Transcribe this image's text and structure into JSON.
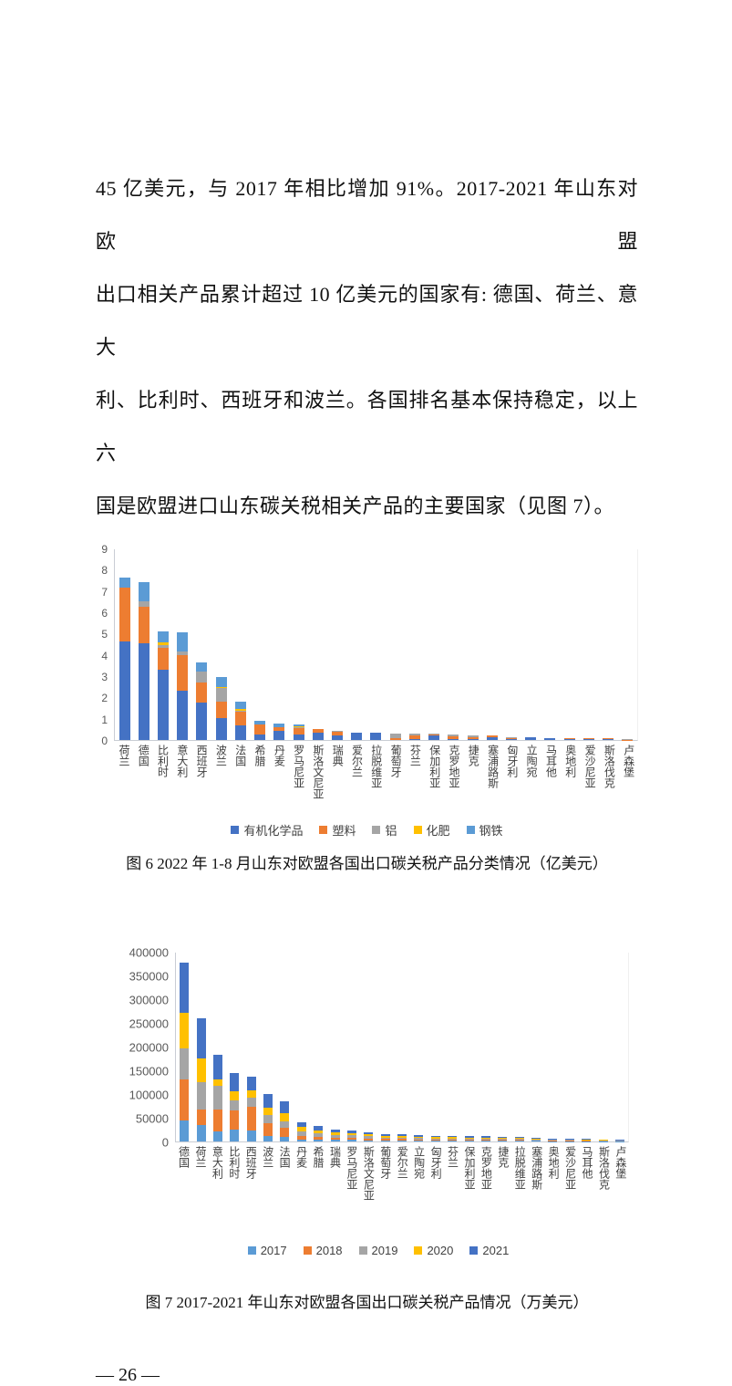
{
  "page": {
    "paragraph_lines": [
      "45 亿美元，与 2017 年相比增加 91%。2017-2021 年山东对欧盟",
      "出口相关产品累计超过 10 亿美元的国家有: 德国、荷兰、意大",
      "利、比利时、西班牙和波兰。各国排名基本保持稳定，以上六",
      "国是欧盟进口山东碳关税相关产品的主要国家（见图 7）。"
    ],
    "figure6_caption": "图 6 2022 年 1-8 月山东对欧盟各国出口碳关税产品分类情况（亿美元）",
    "figure7_caption": "图 7 2017-2021 年山东对欧盟各国出口碳关税产品情况（万美元）",
    "page_number": "— 26 —"
  },
  "colors": {
    "series_dark_blue": "#4472C4",
    "series_orange": "#ED7D31",
    "series_gray": "#A5A5A5",
    "series_yellow": "#FFC000",
    "series_light_blue": "#5B9BD5",
    "axis_line": "#C9CDD4",
    "tick_text": "#595959"
  },
  "chart_data": [
    {
      "type": "bar",
      "stacked": true,
      "title": "",
      "unit": "亿美元",
      "ylim": [
        0,
        9
      ],
      "yticks": [
        0,
        1,
        2,
        3,
        4,
        5,
        6,
        7,
        8,
        9
      ],
      "gridlines": false,
      "legend_position": "bottom",
      "categories": [
        "荷兰",
        "德国",
        "比利时",
        "意大利",
        "西班牙",
        "波兰",
        "法国",
        "希腊",
        "丹麦",
        "罗马尼亚",
        "斯洛文尼亚",
        "瑞典",
        "爱尔兰",
        "拉脱维亚",
        "葡萄牙",
        "芬兰",
        "保加利亚",
        "克罗地亚",
        "捷克",
        "塞浦路斯",
        "匈牙利",
        "立陶宛",
        "马耳他",
        "奥地利",
        "爱沙尼亚",
        "斯洛伐克",
        "卢森堡"
      ],
      "series": [
        {
          "name": "有机化学品",
          "color": "#4472C4",
          "values": [
            4.65,
            4.55,
            3.3,
            2.3,
            1.75,
            1.05,
            0.7,
            0.25,
            0.45,
            0.25,
            0.35,
            0.2,
            0.33,
            0.33,
            0.0,
            0.05,
            0.2,
            0.05,
            0.05,
            0.15,
            0.05,
            0.12,
            0.08,
            0.05,
            0.05,
            0.06,
            0.0
          ]
        },
        {
          "name": "塑料",
          "color": "#ED7D31",
          "values": [
            2.5,
            1.7,
            1.05,
            1.7,
            0.95,
            0.75,
            0.65,
            0.5,
            0.15,
            0.3,
            0.15,
            0.2,
            0.02,
            0.02,
            0.1,
            0.15,
            0.05,
            0.12,
            0.08,
            0.05,
            0.03,
            0.02,
            0.02,
            0.02,
            0.02,
            0.02,
            0.01
          ]
        },
        {
          "name": "铝",
          "color": "#A5A5A5",
          "values": [
            0.0,
            0.25,
            0.1,
            0.15,
            0.5,
            0.65,
            0.02,
            0.0,
            0.02,
            0.03,
            0.0,
            0.05,
            0.0,
            0.0,
            0.18,
            0.1,
            0.05,
            0.08,
            0.1,
            0.0,
            0.06,
            0.0,
            0.0,
            0.03,
            0.03,
            0.0,
            0.04
          ]
        },
        {
          "name": "化肥",
          "color": "#FFC000",
          "values": [
            0.02,
            0.02,
            0.15,
            0.02,
            0.02,
            0.02,
            0.1,
            0.0,
            0.0,
            0.05,
            0.0,
            0.0,
            0.0,
            0.0,
            0.0,
            0.0,
            0.0,
            0.0,
            0.0,
            0.0,
            0.0,
            0.0,
            0.0,
            0.0,
            0.0,
            0.0,
            0.0
          ]
        },
        {
          "name": "钢铁",
          "color": "#5B9BD5",
          "values": [
            0.45,
            0.9,
            0.5,
            0.9,
            0.43,
            0.5,
            0.35,
            0.15,
            0.15,
            0.12,
            0.0,
            0.0,
            0.0,
            0.0,
            0.0,
            0.0,
            0.0,
            0.0,
            0.0,
            0.0,
            0.0,
            0.0,
            0.0,
            0.0,
            0.0,
            0.0,
            0.0
          ]
        }
      ]
    },
    {
      "type": "bar",
      "stacked": true,
      "title": "",
      "unit": "万美元",
      "ylim": [
        0,
        400000
      ],
      "yticks": [
        0,
        50000,
        100000,
        150000,
        200000,
        250000,
        300000,
        350000,
        400000
      ],
      "gridlines": false,
      "legend_position": "bottom",
      "categories": [
        "德国",
        "荷兰",
        "意大利",
        "比利时",
        "西班牙",
        "波兰",
        "法国",
        "丹麦",
        "希腊",
        "瑞典",
        "罗马尼亚",
        "斯洛文尼亚",
        "葡萄牙",
        "爱尔兰",
        "立陶宛",
        "匈牙利",
        "芬兰",
        "保加利亚",
        "克罗地亚",
        "捷克",
        "拉脱维亚",
        "塞浦路斯",
        "奥地利",
        "爱沙尼亚",
        "马耳他",
        "斯洛伐克",
        "卢森堡"
      ],
      "series": [
        {
          "name": "2017",
          "color": "#5B9BD5",
          "values": [
            45000,
            35000,
            21000,
            25000,
            23000,
            12000,
            10000,
            4000,
            3000,
            3000,
            3000,
            2000,
            2000,
            2000,
            1000,
            1000,
            1000,
            1000,
            1000,
            1000,
            1000,
            1000,
            500,
            500,
            500,
            500,
            200
          ]
        },
        {
          "name": "2018",
          "color": "#ED7D31",
          "values": [
            85000,
            33000,
            47000,
            40000,
            50000,
            26000,
            18000,
            8000,
            7000,
            5000,
            5000,
            4000,
            3000,
            3000,
            3000,
            2000,
            2000,
            2000,
            2000,
            2000,
            2000,
            1000,
            1000,
            1000,
            1000,
            500,
            500
          ]
        },
        {
          "name": "2019",
          "color": "#A5A5A5",
          "values": [
            67000,
            57000,
            50000,
            22000,
            20000,
            18000,
            15000,
            10000,
            7000,
            6000,
            5000,
            5000,
            3000,
            3000,
            3000,
            3000,
            3000,
            2000,
            2000,
            2000,
            2000,
            2000,
            1500,
            1500,
            1000,
            1000,
            800
          ]
        },
        {
          "name": "2020",
          "color": "#FFC000",
          "values": [
            75000,
            50000,
            13000,
            18000,
            15000,
            15000,
            17000,
            8000,
            7000,
            5000,
            4000,
            4000,
            4000,
            3000,
            3000,
            3000,
            3000,
            3000,
            3000,
            2000,
            2000,
            2000,
            1500,
            1500,
            1000,
            1000,
            500
          ]
        },
        {
          "name": "2021",
          "color": "#4472C4",
          "values": [
            105000,
            85000,
            51000,
            40000,
            28000,
            29000,
            25000,
            10000,
            8000,
            6000,
            6000,
            5000,
            3000,
            4000,
            3000,
            3000,
            3000,
            3000,
            3000,
            3000,
            3000,
            2000,
            1500,
            1500,
            1500,
            1000,
            1000
          ]
        }
      ]
    }
  ]
}
